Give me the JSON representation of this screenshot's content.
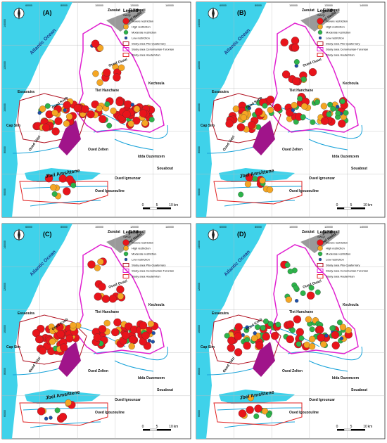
{
  "panels": [
    {
      "label": "(A)"
    },
    {
      "label": "(B)"
    },
    {
      "label": "(C)"
    },
    {
      "label": "(D)"
    }
  ],
  "legend": {
    "title": "Legend",
    "subtitle": "SWQI",
    "items": [
      "Severe restriction",
      "High restriction",
      "Moderate restriction",
      "Low restriction",
      "Study area Plio-Quaternary",
      "Study area Cenomanian-Turonian",
      "Study area Hauterivian"
    ]
  },
  "places": [
    "Zaouiat",
    "El Kourati",
    "Jbel Hadid",
    "Atlantic Ocean",
    "Essaouira",
    "Oued Ksob",
    "Tlet Hanchane",
    "Kechoula",
    "Oued Ouazi",
    "Cap Sim",
    "Oued Tidzi",
    "Oued Zelten",
    "Idda Ouzemzem",
    "Souabout",
    "Oued Igrounzar",
    "Jbel Amsittene",
    "Oued Igouzouline"
  ],
  "scale": [
    "0",
    "5",
    "10",
    "km"
  ],
  "grid_labels": {
    "x": [
      "60000",
      "80000",
      "100000",
      "120000",
      "140000"
    ],
    "y": [
      "140000",
      "120000",
      "100000",
      "80000",
      "60000"
    ]
  }
}
